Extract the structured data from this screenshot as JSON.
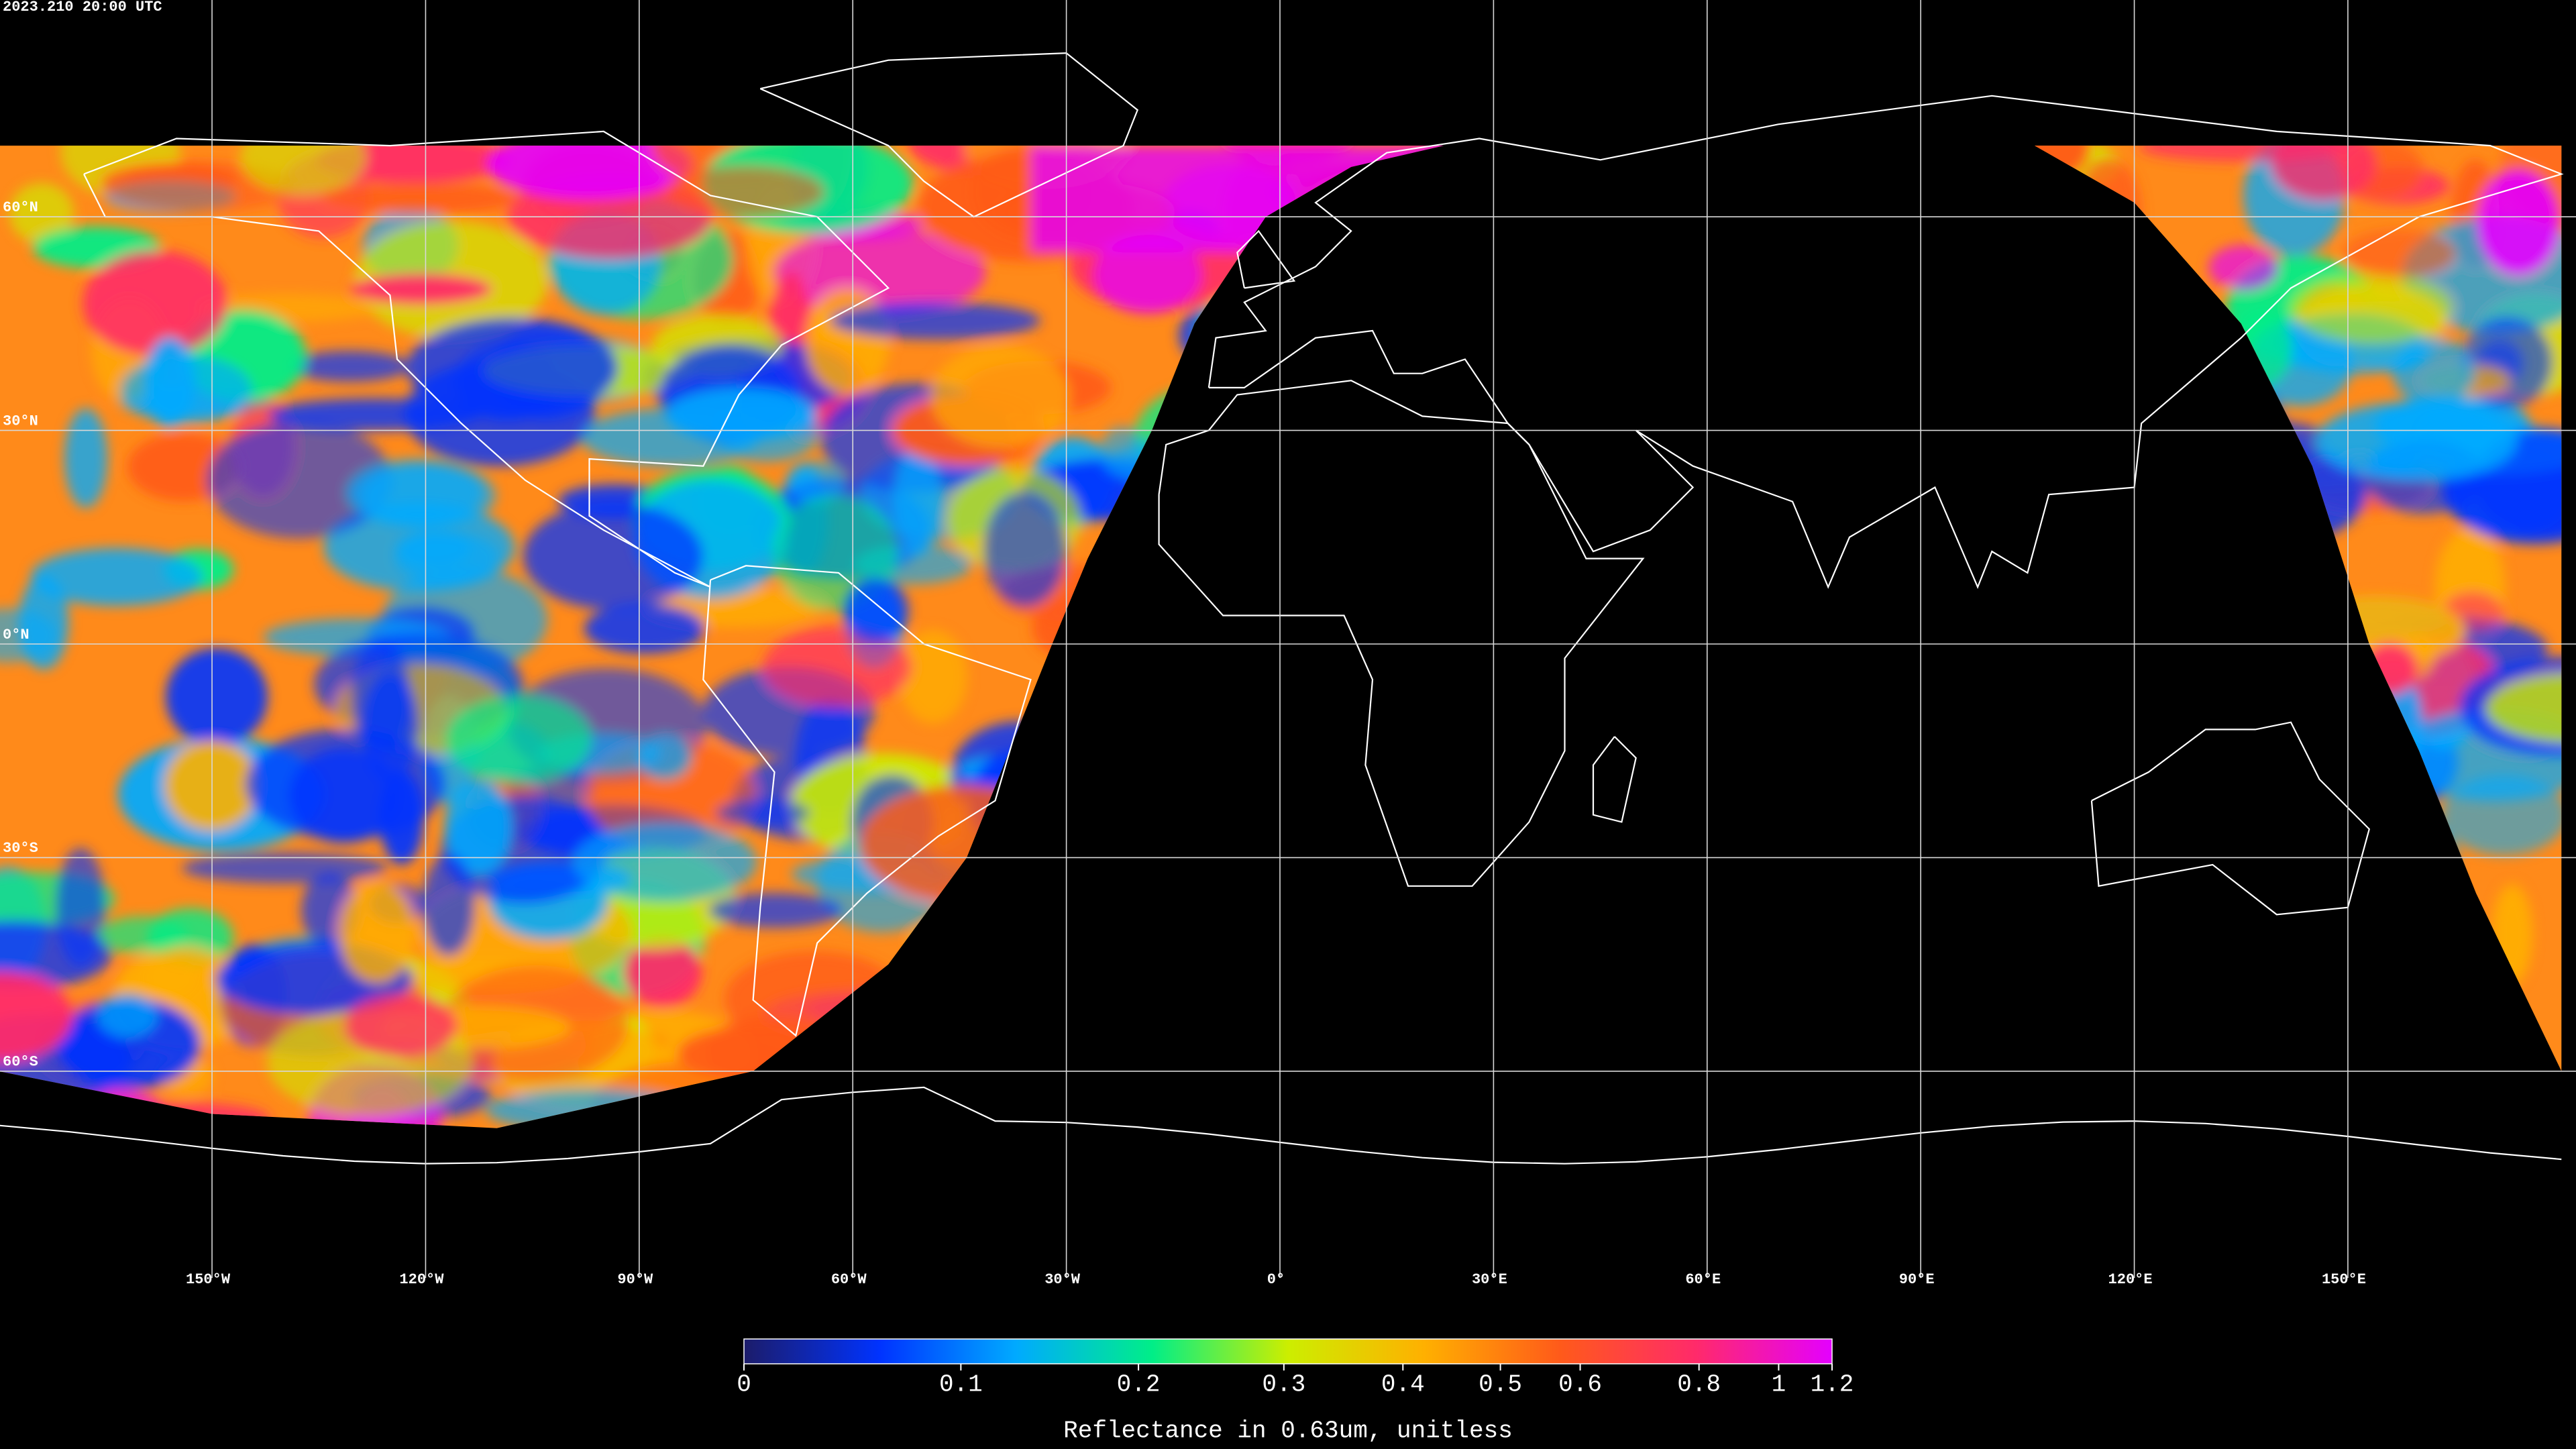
{
  "timestamp": "2023.210 20:00 UTC",
  "map": {
    "lat_lines": [
      {
        "value": 60,
        "label": "60°N"
      },
      {
        "value": 30,
        "label": "30°N"
      },
      {
        "value": 0,
        "label": "0°N"
      },
      {
        "value": -30,
        "label": "30°S"
      },
      {
        "value": -60,
        "label": "60°S"
      }
    ],
    "lon_lines": [
      {
        "value": -150,
        "label": "150°W"
      },
      {
        "value": -120,
        "label": "120°W"
      },
      {
        "value": -90,
        "label": "90°W"
      },
      {
        "value": -60,
        "label": "60°W"
      },
      {
        "value": -30,
        "label": "30°W"
      },
      {
        "value": 0,
        "label": "0°"
      },
      {
        "value": 30,
        "label": "30°E"
      },
      {
        "value": 60,
        "label": "60°E"
      },
      {
        "value": 90,
        "label": "90°E"
      },
      {
        "value": 120,
        "label": "120°E"
      },
      {
        "value": 150,
        "label": "150°E"
      }
    ]
  },
  "colorbar": {
    "range": [
      0,
      1.2
    ],
    "ticks": [
      0,
      0.1,
      0.2,
      0.3,
      0.4,
      0.5,
      0.6,
      0.8,
      1,
      1.2
    ],
    "label": "Reflectance in 0.63um, unitless",
    "colors": [
      "#1c1c6a",
      "#0033ff",
      "#00aaff",
      "#00ee88",
      "#ccee00",
      "#ffb000",
      "#ff5a1a",
      "#ff2a6a",
      "#e400ff"
    ]
  }
}
